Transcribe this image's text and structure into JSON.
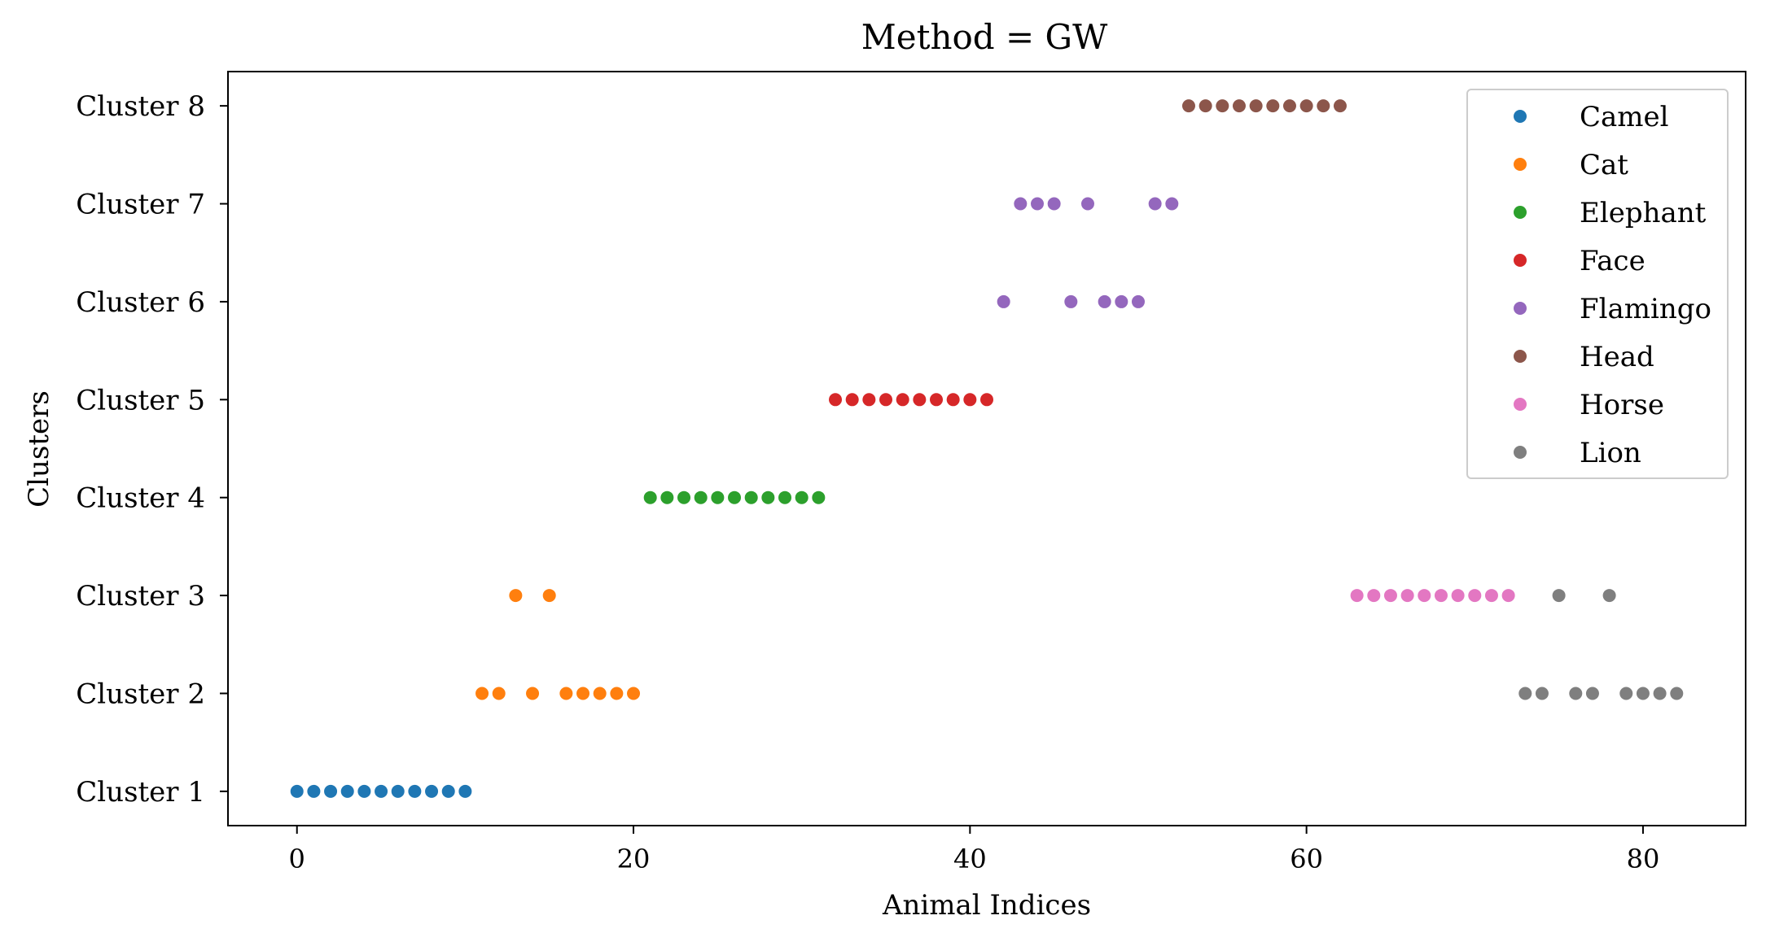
{
  "chart_data": {
    "type": "scatter",
    "title": "Method = GW",
    "xlabel": "Animal Indices",
    "ylabel": "Clusters",
    "xlim": [
      -4.1,
      86.1
    ],
    "ylim": [
      0.65,
      8.35
    ],
    "x_ticks": [
      0,
      20,
      40,
      60,
      80
    ],
    "y_ticks": [
      1,
      2,
      3,
      4,
      5,
      6,
      7,
      8
    ],
    "y_tick_labels": [
      "Cluster 1",
      "Cluster 2",
      "Cluster 3",
      "Cluster 4",
      "Cluster 5",
      "Cluster 6",
      "Cluster 7",
      "Cluster 8"
    ],
    "grid": false,
    "legend_position": "upper-right",
    "series": [
      {
        "name": "Camel",
        "color": "#1f77b4",
        "points": [
          [
            0,
            1
          ],
          [
            1,
            1
          ],
          [
            2,
            1
          ],
          [
            3,
            1
          ],
          [
            4,
            1
          ],
          [
            5,
            1
          ],
          [
            6,
            1
          ],
          [
            7,
            1
          ],
          [
            8,
            1
          ],
          [
            9,
            1
          ],
          [
            10,
            1
          ]
        ]
      },
      {
        "name": "Cat",
        "color": "#ff7f0e",
        "points": [
          [
            11,
            2
          ],
          [
            12,
            2
          ],
          [
            13,
            3
          ],
          [
            14,
            2
          ],
          [
            15,
            3
          ],
          [
            16,
            2
          ],
          [
            17,
            2
          ],
          [
            18,
            2
          ],
          [
            19,
            2
          ],
          [
            20,
            2
          ]
        ]
      },
      {
        "name": "Elephant",
        "color": "#2ca02c",
        "points": [
          [
            21,
            4
          ],
          [
            22,
            4
          ],
          [
            23,
            4
          ],
          [
            24,
            4
          ],
          [
            25,
            4
          ],
          [
            26,
            4
          ],
          [
            27,
            4
          ],
          [
            28,
            4
          ],
          [
            29,
            4
          ],
          [
            30,
            4
          ],
          [
            31,
            4
          ]
        ]
      },
      {
        "name": "Face",
        "color": "#d62728",
        "points": [
          [
            32,
            5
          ],
          [
            33,
            5
          ],
          [
            34,
            5
          ],
          [
            35,
            5
          ],
          [
            36,
            5
          ],
          [
            37,
            5
          ],
          [
            38,
            5
          ],
          [
            39,
            5
          ],
          [
            40,
            5
          ],
          [
            41,
            5
          ]
        ]
      },
      {
        "name": "Flamingo",
        "color": "#9467bd",
        "points": [
          [
            42,
            6
          ],
          [
            43,
            7
          ],
          [
            44,
            7
          ],
          [
            45,
            7
          ],
          [
            46,
            6
          ],
          [
            47,
            7
          ],
          [
            48,
            6
          ],
          [
            49,
            6
          ],
          [
            50,
            6
          ],
          [
            51,
            7
          ],
          [
            52,
            7
          ]
        ]
      },
      {
        "name": "Head",
        "color": "#8c564b",
        "points": [
          [
            53,
            8
          ],
          [
            54,
            8
          ],
          [
            55,
            8
          ],
          [
            56,
            8
          ],
          [
            57,
            8
          ],
          [
            58,
            8
          ],
          [
            59,
            8
          ],
          [
            60,
            8
          ],
          [
            61,
            8
          ],
          [
            62,
            8
          ]
        ]
      },
      {
        "name": "Horse",
        "color": "#e377c2",
        "points": [
          [
            63,
            3
          ],
          [
            64,
            3
          ],
          [
            65,
            3
          ],
          [
            66,
            3
          ],
          [
            67,
            3
          ],
          [
            68,
            3
          ],
          [
            69,
            3
          ],
          [
            70,
            3
          ],
          [
            71,
            3
          ],
          [
            72,
            3
          ]
        ]
      },
      {
        "name": "Lion",
        "color": "#7f7f7f",
        "points": [
          [
            73,
            2
          ],
          [
            74,
            2
          ],
          [
            75,
            3
          ],
          [
            76,
            2
          ],
          [
            77,
            2
          ],
          [
            78,
            3
          ],
          [
            79,
            2
          ],
          [
            80,
            2
          ],
          [
            81,
            2
          ],
          [
            82,
            2
          ]
        ]
      }
    ]
  }
}
